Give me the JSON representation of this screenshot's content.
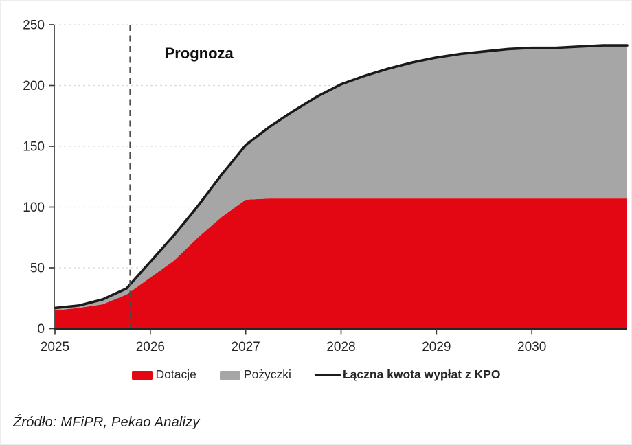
{
  "chart_data": {
    "type": "area",
    "stacked": true,
    "title": "",
    "xlabel": "",
    "ylabel": "",
    "xlim": [
      2025,
      2031
    ],
    "ylim": [
      0,
      250
    ],
    "yticks": [
      "0",
      "50",
      "100",
      "150",
      "200",
      "250"
    ],
    "ytick_values": [
      0,
      50,
      100,
      150,
      200,
      250
    ],
    "xticks": [
      "2025",
      "2026",
      "2027",
      "2028",
      "2029",
      "2030"
    ],
    "xtick_values": [
      2025,
      2026,
      2027,
      2028,
      2029,
      2030
    ],
    "grid": "dashed-horizontal",
    "legend_position": "bottom",
    "x": [
      2025,
      2025.25,
      2025.5,
      2025.75,
      2026,
      2026.25,
      2026.5,
      2026.75,
      2027,
      2027.25,
      2027.5,
      2027.75,
      2028,
      2028.25,
      2028.5,
      2028.75,
      2029,
      2029.25,
      2029.5,
      2029.75,
      2030,
      2030.25,
      2030.5,
      2030.75,
      2031
    ],
    "series": [
      {
        "name": "Dotacje",
        "type": "area",
        "color": "#e30613",
        "values": [
          15,
          17,
          20,
          28,
          42,
          56,
          75,
          92,
          106,
          107,
          107,
          107,
          107,
          107,
          107,
          107,
          107,
          107,
          107,
          107,
          107,
          107,
          107,
          107,
          107
        ]
      },
      {
        "name": "Pożyczki",
        "type": "area",
        "color": "#a6a6a6",
        "values": [
          2,
          2,
          4,
          5,
          13,
          21,
          26,
          35,
          45,
          59,
          72,
          84,
          94,
          101,
          107,
          112,
          116,
          119,
          121,
          123,
          124,
          124,
          125,
          126,
          126
        ]
      },
      {
        "name": "Łączna kwota wypłat z KPO",
        "type": "line",
        "color": "#1a1a1a",
        "values": [
          17,
          19,
          24,
          33,
          55,
          77,
          101,
          127,
          151,
          166,
          179,
          191,
          201,
          208,
          214,
          219,
          223,
          226,
          228,
          230,
          231,
          231,
          232,
          233,
          233
        ]
      }
    ],
    "annotation": {
      "label": "Prognoza",
      "x": 2025.79
    },
    "colors": {
      "grid": "#d9d9d9",
      "axis": "#3b3b3b",
      "tick_label": "#262626",
      "forecast_divider": "#4d4d4d"
    }
  },
  "legend": {
    "items": [
      "Dotacje",
      "Pożyczki",
      "Łączna kwota wypłat z KPO"
    ]
  },
  "source": "Źródło: MFiPR, Pekao Analizy"
}
